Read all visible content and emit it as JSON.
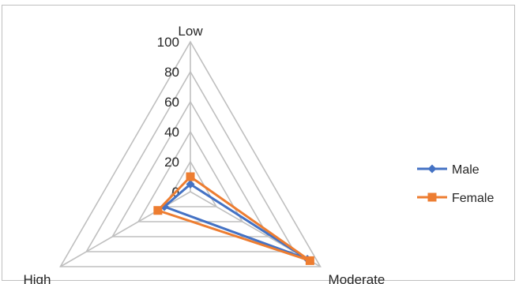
{
  "chart_data": {
    "type": "radar",
    "categories": [
      "Low",
      "Moderate",
      "High"
    ],
    "rlim": [
      0,
      100
    ],
    "ticks": [
      "0",
      "20",
      "40",
      "60",
      "80",
      "100"
    ],
    "grid": true,
    "legend_position": "right",
    "series": [
      {
        "name": "Male",
        "values": [
          5,
          90,
          20
        ],
        "color": "#4472C4",
        "marker": "diamond"
      },
      {
        "name": "Female",
        "values": [
          10,
          92,
          25
        ],
        "color": "#ED7D31",
        "marker": "square"
      }
    ]
  }
}
